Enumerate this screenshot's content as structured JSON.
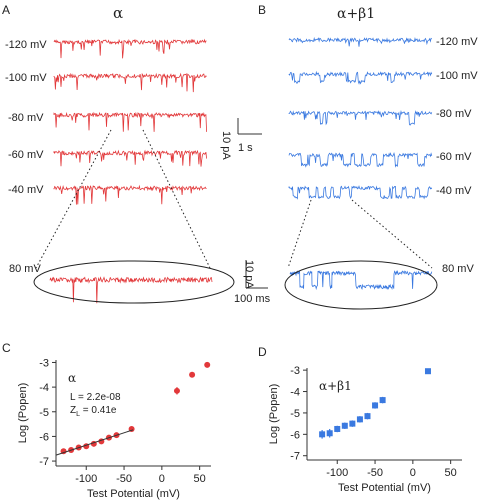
{
  "figure": {
    "panel_letters": [
      "A",
      "B",
      "C",
      "D"
    ],
    "colors": {
      "alpha": "#e2383a",
      "alpha_beta1": "#3a79e0",
      "axis": "#333333"
    }
  },
  "traces": {
    "alpha": {
      "title": "α",
      "voltages": [
        "-120 mV",
        "-100 mV",
        "-80 mV",
        "-60 mV",
        "-40 mV"
      ],
      "zoom_label": "80 mV"
    },
    "alpha_beta1": {
      "title": "α+β1",
      "voltages": [
        "-120 mV",
        "-100 mV",
        "-80 mV",
        "-60 mV",
        "-40 mV"
      ],
      "zoom_label": "80 mV"
    },
    "scalebar_main": {
      "current": "10 pA",
      "time": "1 s"
    },
    "scalebar_zoom": {
      "current": "10 pA",
      "time": "100 ms"
    }
  },
  "chart_data": [
    {
      "panel": "C",
      "type": "scatter",
      "title": "α",
      "xlabel": "Test Potential (mV)",
      "ylabel": "Log (Popen)",
      "xlim": [
        -140,
        65
      ],
      "ylim": [
        -7.2,
        -2.9
      ],
      "xticks": [
        "-100",
        "-50",
        "0",
        "50"
      ],
      "xtick_values": [
        -100,
        -50,
        0,
        50
      ],
      "yticks": [
        "-3",
        "-4",
        "-5",
        "-6",
        "-7"
      ],
      "ytick_values": [
        -3,
        -4,
        -5,
        -6,
        -7
      ],
      "annotations": [
        "L = 2.2e-08",
        "Z",
        "L",
        " = 0.41e"
      ],
      "x": [
        -130,
        -120,
        -110,
        -100,
        -90,
        -80,
        -70,
        -60,
        -40,
        20,
        40,
        60
      ],
      "y": [
        -6.6,
        -6.55,
        -6.45,
        -6.4,
        -6.3,
        -6.2,
        -6.05,
        -5.95,
        -5.7,
        -4.15,
        -3.5,
        -3.1
      ],
      "err": [
        0.1,
        0.1,
        0.08,
        0.08,
        0.08,
        0.08,
        0.08,
        0.08,
        0.08,
        0.15,
        0.1,
        0.05
      ]
    },
    {
      "panel": "D",
      "type": "scatter",
      "title": "α+β1",
      "xlabel": "Test Potential (mV)",
      "ylabel": "Log (Popen)",
      "xlim": [
        -140,
        65
      ],
      "ylim": [
        -7.2,
        -2.9
      ],
      "xticks": [
        "-100",
        "-50",
        "0",
        "50"
      ],
      "xtick_values": [
        -100,
        -50,
        0,
        50
      ],
      "yticks": [
        "-3",
        "-4",
        "-5",
        "-6",
        "-7"
      ],
      "ytick_values": [
        -3,
        -4,
        -5,
        -6,
        -7
      ],
      "x": [
        -120,
        -110,
        -100,
        -90,
        -80,
        -70,
        -60,
        -50,
        -40,
        20
      ],
      "y": [
        -6.0,
        -5.95,
        -5.75,
        -5.6,
        -5.5,
        -5.3,
        -5.15,
        -4.65,
        -4.4,
        -3.05
      ],
      "err": [
        0.2,
        0.2,
        0.15,
        0.15,
        0.15,
        0.15,
        0.15,
        0.15,
        0.15,
        0.05
      ]
    }
  ]
}
